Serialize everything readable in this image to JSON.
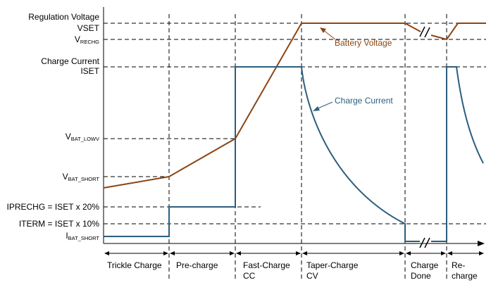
{
  "y_labels": {
    "regulation_voltage": "Regulation Voltage",
    "vset": "VSET",
    "vrechg_main": "V",
    "vrechg_sub": "RECHG",
    "charge_current": "Charge Current",
    "iset": "ISET",
    "vbat_lowv_main": "V",
    "vbat_lowv_sub": "BAT_LOWV",
    "vbat_short_main": "V",
    "vbat_short_sub": "BAT_SHORT",
    "iprechg": "IPRECHG = ISET x 20%",
    "iterm": "ITERM = ISET x 10%",
    "ibat_short_main": "I",
    "ibat_short_sub": "BAT_SHORT"
  },
  "annotations": {
    "battery_voltage": "Battery Voltage",
    "charge_current": "Charge Current"
  },
  "phases": [
    {
      "line1": "Trickle Charge",
      "line2": ""
    },
    {
      "line1": "Pre-charge",
      "line2": ""
    },
    {
      "line1": "Fast-Charge",
      "line2": "CC"
    },
    {
      "line1": "Taper-Charge",
      "line2": "CV"
    },
    {
      "line1": "Charge",
      "line2": "Done"
    },
    {
      "line1": "Re-",
      "line2": "charge"
    }
  ],
  "colors": {
    "battery_voltage": "#8b4513",
    "charge_current": "#2b5e7e",
    "axis": "#000000",
    "guide": "#000000"
  }
}
